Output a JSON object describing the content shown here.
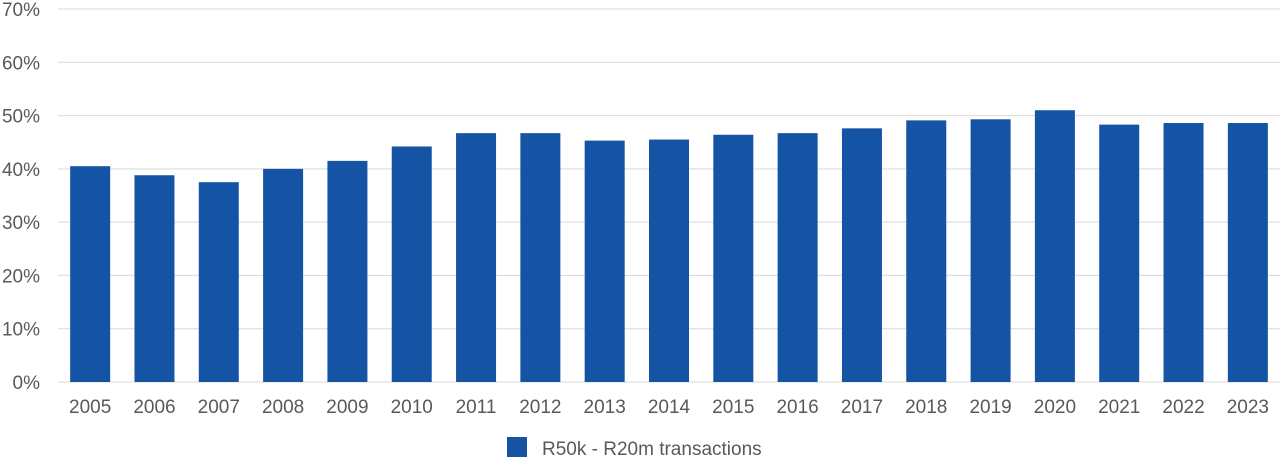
{
  "chart_data": {
    "type": "bar",
    "categories": [
      "2005",
      "2006",
      "2007",
      "2008",
      "2009",
      "2010",
      "2011",
      "2012",
      "2013",
      "2014",
      "2015",
      "2016",
      "2017",
      "2018",
      "2019",
      "2020",
      "2021",
      "2022",
      "2023"
    ],
    "series": [
      {
        "name": "R50k - R20m transactions",
        "values": [
          40.5,
          38.8,
          37.5,
          40.0,
          41.5,
          44.2,
          46.7,
          46.7,
          45.3,
          45.5,
          46.4,
          46.7,
          47.6,
          49.1,
          49.3,
          51.0,
          48.3,
          48.6,
          48.6
        ],
        "color": "#1553A5"
      }
    ],
    "yticks": [
      "0%",
      "10%",
      "20%",
      "30%",
      "40%",
      "50%",
      "60%",
      "70%"
    ],
    "ylim": [
      0,
      70
    ],
    "grid": true,
    "gridColor": "#d9d9d9",
    "legend": "bottom-center"
  }
}
